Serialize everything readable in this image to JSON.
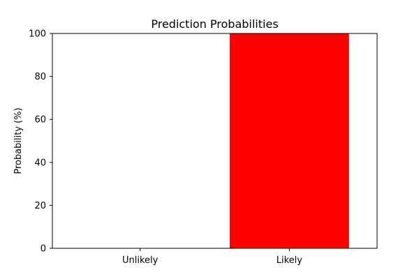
{
  "chart_data": {
    "type": "bar",
    "title": "Prediction Probabilities",
    "xlabel": "",
    "ylabel": "Probability (%)",
    "categories": [
      "Unlikely",
      "Likely"
    ],
    "values": [
      0,
      100
    ],
    "colors": [
      "#ff0000",
      "#ff0000"
    ],
    "ylim": [
      0,
      100
    ],
    "yticks": [
      0,
      20,
      40,
      60,
      80,
      100
    ],
    "grid": false,
    "legend": "none"
  }
}
